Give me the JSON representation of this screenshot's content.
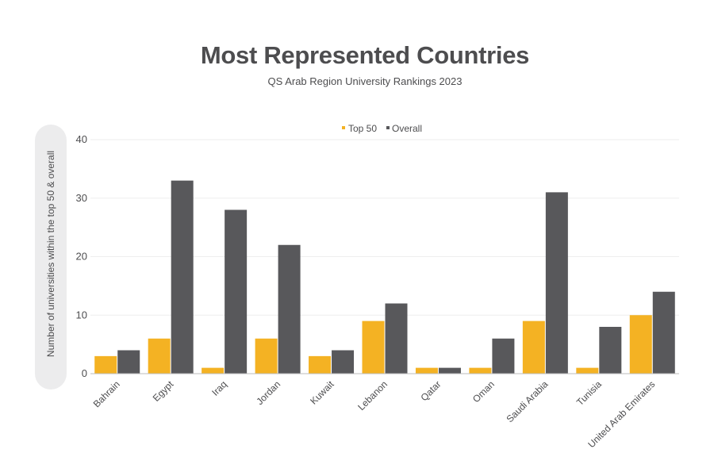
{
  "title": "Most Represented Countries",
  "subtitle": "QS Arab Region University Rankings 2023",
  "colors": {
    "top50": "#f4b223",
    "overall": "#58585b",
    "grid": "#eeeeee",
    "axis": "#4d4d4f"
  },
  "chart_data": {
    "type": "bar",
    "categories": [
      "Bahrain",
      "Egypt",
      "Iraq",
      "Jordan",
      "Kuwait",
      "Lebanon",
      "Qatar",
      "Oman",
      "Saudi Arabia",
      "Tunisia",
      "United Arab Emirates"
    ],
    "series": [
      {
        "name": "Top 50",
        "values": [
          3,
          6,
          1,
          6,
          3,
          9,
          1,
          1,
          9,
          1,
          10
        ]
      },
      {
        "name": "Overall",
        "values": [
          4,
          33,
          28,
          22,
          4,
          12,
          1,
          6,
          31,
          8,
          14
        ]
      }
    ],
    "ylabel": "Number of universities within the top 50 & overall",
    "ylim": [
      0,
      40
    ],
    "yticks": [
      0,
      10,
      20,
      30,
      40
    ],
    "grid": true,
    "legend": "top-center"
  }
}
